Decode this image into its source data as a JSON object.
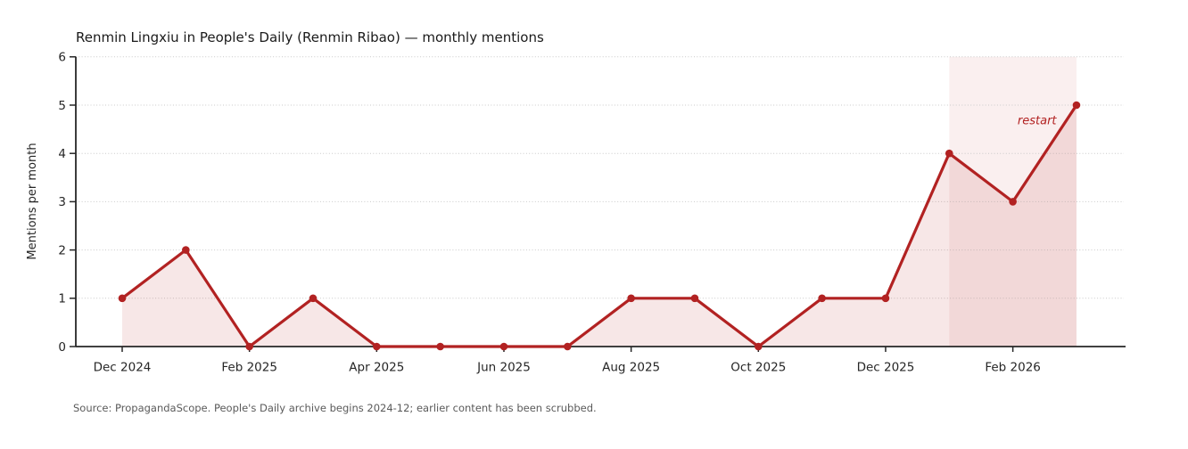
{
  "title": "Renmin Lingxiu in People's Daily (Renmin Ribao) — monthly mentions",
  "source_note": "Source: PropagandaScope. People's Daily archive begins 2024-12; earlier content has been scrubbed.",
  "chart_data": {
    "type": "line",
    "title": "Renmin Lingxiu in People's Daily (Renmin Ribao) — monthly mentions",
    "xlabel": "",
    "ylabel": "Mentions per month",
    "categories": [
      "Dec 2024",
      "Jan 2025",
      "Feb 2025",
      "Mar 2025",
      "Apr 2025",
      "May 2025",
      "Jun 2025",
      "Jul 2025",
      "Aug 2025",
      "Sep 2025",
      "Oct 2025",
      "Nov 2025",
      "Dec 2025",
      "Jan 2026",
      "Feb 2026",
      "Mar 2026"
    ],
    "values": [
      1,
      2,
      0,
      1,
      0,
      0,
      0,
      0,
      1,
      1,
      0,
      1,
      1,
      4,
      3,
      5
    ],
    "ylim": [
      0,
      6
    ],
    "yticks": [
      0,
      1,
      2,
      3,
      4,
      5,
      6
    ],
    "xtick_indices": [
      0,
      2,
      4,
      6,
      8,
      10,
      12,
      14
    ],
    "xtick_labels": [
      "Dec 2024",
      "Feb 2025",
      "Apr 2025",
      "Jun 2025",
      "Aug 2025",
      "Oct 2025",
      "Dec 2025",
      "Feb 2026"
    ],
    "grid": "horizontal-dotted",
    "legend": "none",
    "area_fill_under_line": true,
    "highlight_band": {
      "from": "Jan 2026",
      "to": "Mar 2026",
      "from_index": 13,
      "to_index": 15
    },
    "annotation": {
      "text": "restart",
      "x_index": 14.38,
      "y_value": 4.68
    },
    "colors": {
      "line": "#b22222",
      "marker": "#b22222",
      "area_fill": "rgba(178,34,34,0.11)",
      "band_fill": "rgba(178,34,34,0.07)",
      "grid": "#c9c9c9",
      "spine": "#262626",
      "title_text": "#1a1a1a",
      "tick_text": "#262626",
      "ylabel_text": "#262626",
      "source_text": "#5a5a5a",
      "annotation_text": "#b22222"
    }
  }
}
